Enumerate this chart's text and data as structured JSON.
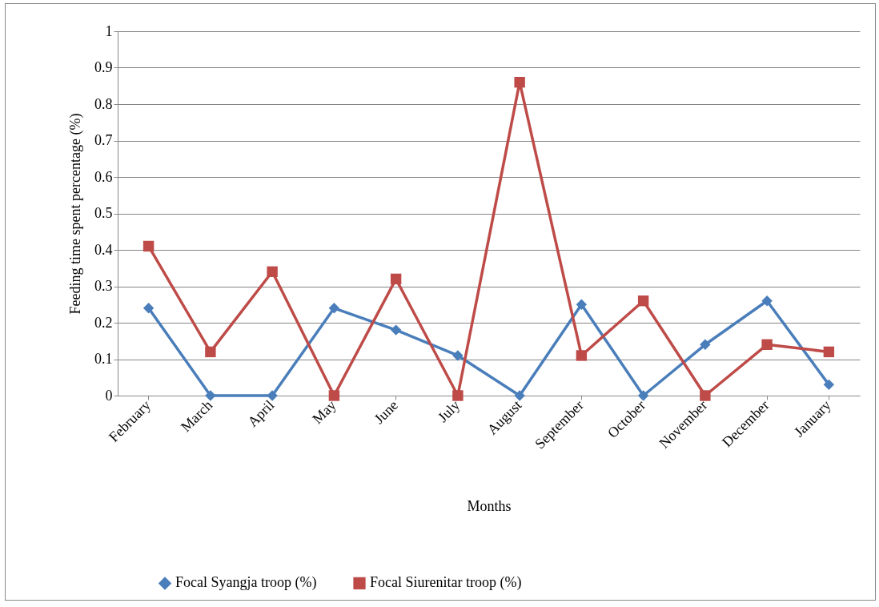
{
  "chart_data": {
    "type": "line",
    "xlabel": "Months",
    "ylabel": "Feeding time spent percentage (%)",
    "categories": [
      "February",
      "March",
      "April",
      "May",
      "June",
      "July",
      "August",
      "September",
      "October",
      "November",
      "December",
      "January"
    ],
    "series": [
      {
        "name": "Focal Syangja troop (%)",
        "color": "#4a7ebb",
        "marker": "diamond",
        "values": [
          0.24,
          0,
          0,
          0.24,
          0.18,
          0.11,
          0,
          0.25,
          0,
          0.14,
          0.26,
          0.03
        ]
      },
      {
        "name": "Focal Siurenitar troop (%)",
        "color": "#be4b48",
        "marker": "square",
        "values": [
          0.41,
          0.12,
          0.34,
          0,
          0.32,
          0,
          0.86,
          0.11,
          0.26,
          0,
          0.14,
          0.12
        ]
      }
    ],
    "ylim": [
      0,
      1
    ],
    "yticks": [
      0,
      0.1,
      0.2,
      0.3,
      0.4,
      0.5,
      0.6,
      0.7,
      0.8,
      0.9,
      1
    ],
    "grid": "y",
    "legend": "bottom"
  }
}
